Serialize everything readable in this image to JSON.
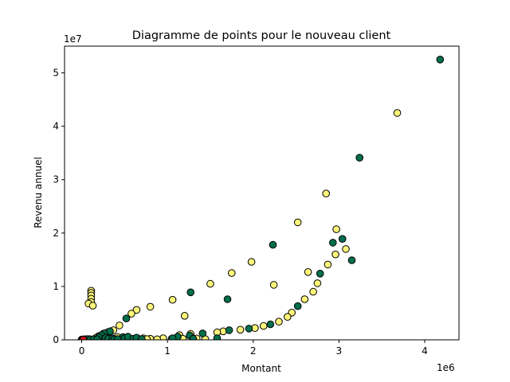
{
  "chart_data": {
    "type": "scatter",
    "title": "Diagramme de points pour le nouveau client",
    "xlabel": "Montant",
    "ylabel": "Revenu annuel",
    "x_offset_label": "1e6",
    "y_offset_label": "1e7",
    "xlim": [
      -200000,
      4400000
    ],
    "ylim": [
      0,
      55000000
    ],
    "x_ticks": [
      0,
      1000000,
      2000000,
      3000000,
      4000000
    ],
    "x_tick_labels": [
      "0",
      "1",
      "2",
      "3",
      "4"
    ],
    "y_ticks": [
      0,
      10000000,
      20000000,
      30000000,
      40000000,
      50000000
    ],
    "y_tick_labels": [
      "0",
      "1",
      "2",
      "3",
      "4",
      "5"
    ],
    "grid": false,
    "colors": {
      "yellow": "#fdf57a",
      "green": "#006f4e",
      "red": "#d7191c",
      "edge": "#000000"
    },
    "series": [
      {
        "color": "yellow",
        "points": [
          [
            3680000,
            42500000
          ],
          [
            2850000,
            27400000
          ],
          [
            2520000,
            22000000
          ],
          [
            2970000,
            20700000
          ],
          [
            1980000,
            14600000
          ],
          [
            1750000,
            12500000
          ],
          [
            1500000,
            10500000
          ],
          [
            2240000,
            10300000
          ],
          [
            2640000,
            12700000
          ],
          [
            3080000,
            17000000
          ],
          [
            2960000,
            16000000
          ],
          [
            2870000,
            14100000
          ],
          [
            2750000,
            10600000
          ],
          [
            2700000,
            9000000
          ],
          [
            2600000,
            7600000
          ],
          [
            1060000,
            7500000
          ],
          [
            800000,
            6200000
          ],
          [
            640000,
            5600000
          ],
          [
            580000,
            4900000
          ],
          [
            1200000,
            4500000
          ],
          [
            440000,
            2700000
          ],
          [
            370000,
            1800000
          ],
          [
            2450000,
            5100000
          ],
          [
            2400000,
            4300000
          ],
          [
            2300000,
            3400000
          ],
          [
            2120000,
            2600000
          ],
          [
            2020000,
            2200000
          ],
          [
            1850000,
            1900000
          ],
          [
            1650000,
            1600000
          ],
          [
            1580000,
            1400000
          ],
          [
            1270000,
            1100000
          ],
          [
            1140000,
            900000
          ],
          [
            110000,
            9200000
          ],
          [
            110000,
            8800000
          ],
          [
            110000,
            8300000
          ],
          [
            110000,
            7700000
          ],
          [
            110000,
            7100000
          ],
          [
            80000,
            6800000
          ],
          [
            130000,
            6400000
          ],
          [
            300000,
            1400000
          ],
          [
            250000,
            1100000
          ],
          [
            200000,
            700000
          ],
          [
            170000,
            400000
          ],
          [
            420000,
            500000
          ],
          [
            520000,
            400000
          ],
          [
            640000,
            300000
          ],
          [
            720000,
            300000
          ],
          [
            800000,
            200000
          ],
          [
            950000,
            300000
          ],
          [
            1050000,
            200000
          ],
          [
            1180000,
            200000
          ],
          [
            1340000,
            250000
          ],
          [
            1440000,
            150000
          ],
          [
            30000,
            100000
          ],
          [
            60000,
            100000
          ],
          [
            90000,
            100000
          ],
          [
            150000,
            100000
          ],
          [
            210000,
            120000
          ],
          [
            330000,
            150000
          ],
          [
            460000,
            100000
          ],
          [
            560000,
            130000
          ],
          [
            680000,
            100000
          ],
          [
            760000,
            120000
          ],
          [
            880000,
            100000
          ]
        ]
      },
      {
        "color": "green",
        "points": [
          [
            4180000,
            52500000
          ],
          [
            3240000,
            34100000
          ],
          [
            2230000,
            17800000
          ],
          [
            3040000,
            18900000
          ],
          [
            2930000,
            18200000
          ],
          [
            3150000,
            14900000
          ],
          [
            2780000,
            12400000
          ],
          [
            1270000,
            8900000
          ],
          [
            1700000,
            7600000
          ],
          [
            2520000,
            6300000
          ],
          [
            520000,
            4000000
          ],
          [
            330000,
            1600000
          ],
          [
            2200000,
            2900000
          ],
          [
            1950000,
            2100000
          ],
          [
            1720000,
            1800000
          ],
          [
            1410000,
            1200000
          ],
          [
            1260000,
            800000
          ],
          [
            1120000,
            600000
          ],
          [
            1060000,
            300000
          ],
          [
            1580000,
            300000
          ],
          [
            1300000,
            200000
          ],
          [
            260000,
            1200000
          ],
          [
            230000,
            900000
          ],
          [
            200000,
            500000
          ],
          [
            280000,
            400000
          ],
          [
            310000,
            200000
          ],
          [
            360000,
            300000
          ],
          [
            480000,
            500000
          ],
          [
            500000,
            300000
          ],
          [
            540000,
            600000
          ],
          [
            600000,
            200000
          ],
          [
            640000,
            400000
          ],
          [
            700000,
            150000
          ],
          [
            40000,
            100000
          ],
          [
            70000,
            150000
          ],
          [
            100000,
            100000
          ],
          [
            140000,
            120000
          ],
          [
            180000,
            100000
          ],
          [
            380000,
            100000
          ],
          [
            420000,
            150000
          ]
        ]
      },
      {
        "color": "red",
        "points": [
          [
            0,
            50000
          ],
          [
            10000,
            80000
          ],
          [
            20000,
            30000
          ]
        ]
      }
    ]
  }
}
